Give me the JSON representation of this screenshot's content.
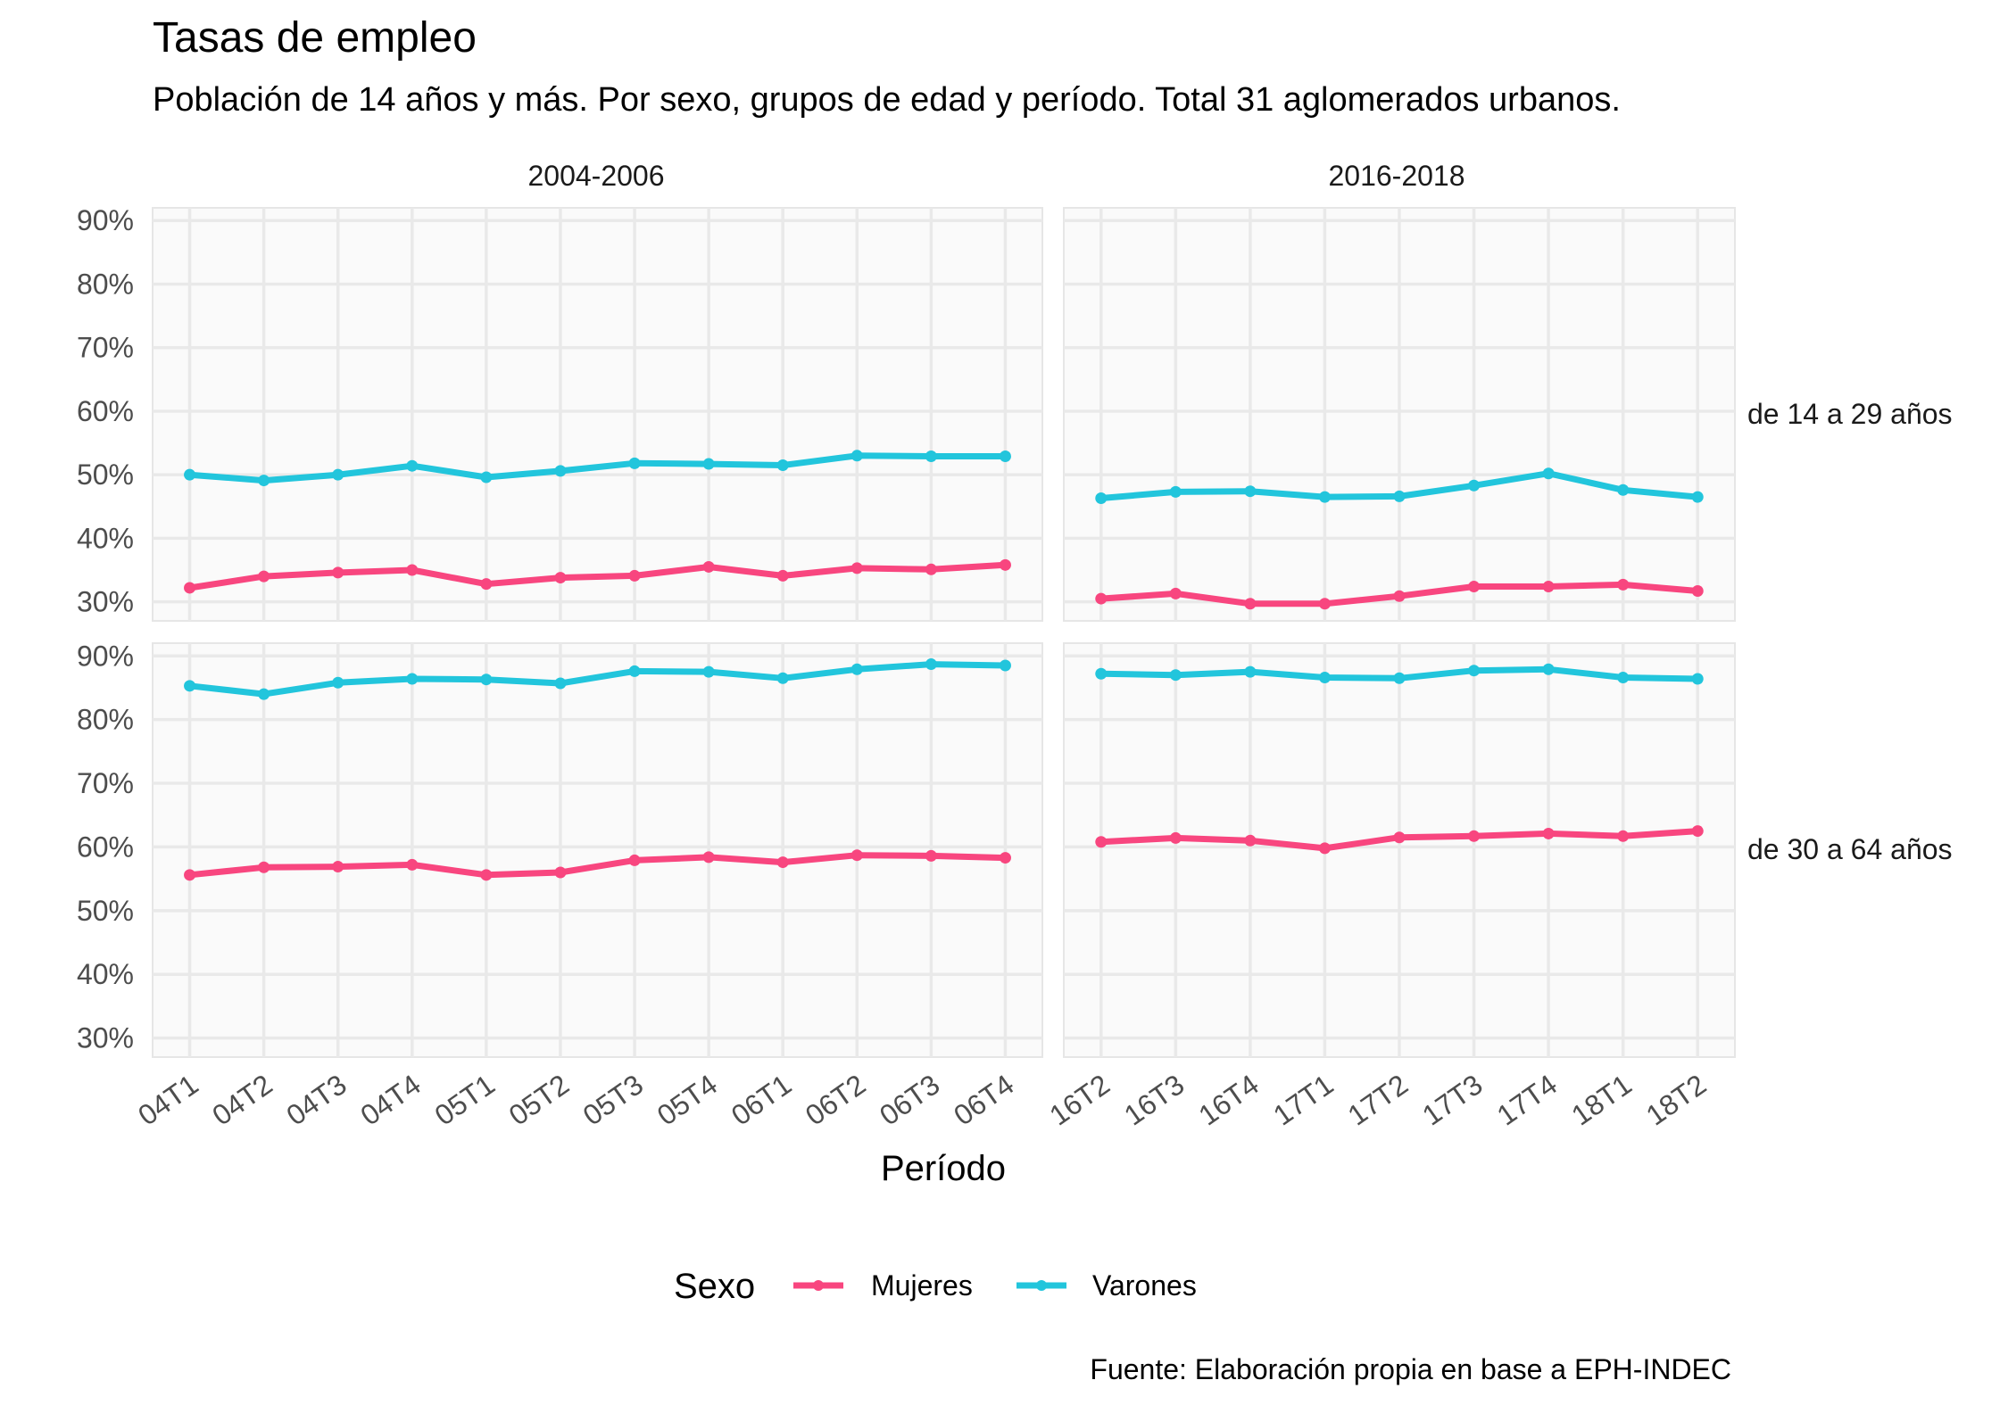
{
  "chart_data": {
    "type": "line",
    "title": "Tasas de empleo",
    "subtitle": "Población de 14 años y más. Por sexo, grupos de edad y período. Total 31 aglomerados urbanos.",
    "xlabel": "Período",
    "ylabel": "",
    "caption": "Fuente: Elaboración propia en base a EPH-INDEC",
    "ylim": [
      0.27,
      0.92
    ],
    "yticks": [
      0.3,
      0.4,
      0.5,
      0.6,
      0.7,
      0.8,
      0.9
    ],
    "ytick_labels": [
      "30%",
      "40%",
      "50%",
      "60%",
      "70%",
      "80%",
      "90%"
    ],
    "grid": true,
    "legend": {
      "title": "Sexo",
      "position": "bottom",
      "entries": [
        {
          "name": "Mujeres",
          "color": "#f8467f"
        },
        {
          "name": "Varones",
          "color": "#22c5dc"
        }
      ]
    },
    "facet_columns": [
      "2004-2006",
      "2016-2018"
    ],
    "facet_rows": [
      "de 14 a 29 años",
      "de 30 a 64 años"
    ],
    "column_categories": [
      [
        "04T1",
        "04T2",
        "04T3",
        "04T4",
        "05T1",
        "05T2",
        "05T3",
        "05T4",
        "06T1",
        "06T2",
        "06T3",
        "06T4"
      ],
      [
        "16T2",
        "16T3",
        "16T4",
        "17T1",
        "17T2",
        "17T3",
        "17T4",
        "18T1",
        "18T2"
      ]
    ],
    "panels": [
      {
        "row": 0,
        "col": 0,
        "series": [
          {
            "name": "Mujeres",
            "values": [
              0.322,
              0.34,
              0.346,
              0.35,
              0.328,
              0.338,
              0.341,
              0.355,
              0.341,
              0.353,
              0.351,
              0.358
            ]
          },
          {
            "name": "Varones",
            "values": [
              0.5,
              0.491,
              0.5,
              0.514,
              0.496,
              0.506,
              0.518,
              0.517,
              0.515,
              0.53,
              0.529,
              0.529
            ]
          }
        ]
      },
      {
        "row": 0,
        "col": 1,
        "series": [
          {
            "name": "Mujeres",
            "values": [
              0.305,
              0.313,
              0.297,
              0.297,
              0.309,
              0.324,
              0.324,
              0.327,
              0.317
            ]
          },
          {
            "name": "Varones",
            "values": [
              0.463,
              0.473,
              0.474,
              0.465,
              0.466,
              0.483,
              0.502,
              0.476,
              0.465
            ]
          }
        ]
      },
      {
        "row": 1,
        "col": 0,
        "series": [
          {
            "name": "Mujeres",
            "values": [
              0.556,
              0.568,
              0.569,
              0.572,
              0.556,
              0.56,
              0.579,
              0.584,
              0.576,
              0.587,
              0.586,
              0.583
            ]
          },
          {
            "name": "Varones",
            "values": [
              0.853,
              0.84,
              0.858,
              0.864,
              0.863,
              0.857,
              0.876,
              0.875,
              0.865,
              0.879,
              0.887,
              0.885
            ]
          }
        ]
      },
      {
        "row": 1,
        "col": 1,
        "series": [
          {
            "name": "Mujeres",
            "values": [
              0.608,
              0.614,
              0.61,
              0.598,
              0.615,
              0.617,
              0.621,
              0.617,
              0.625
            ]
          },
          {
            "name": "Varones",
            "values": [
              0.872,
              0.87,
              0.875,
              0.866,
              0.865,
              0.877,
              0.879,
              0.866,
              0.864
            ]
          }
        ]
      }
    ]
  }
}
